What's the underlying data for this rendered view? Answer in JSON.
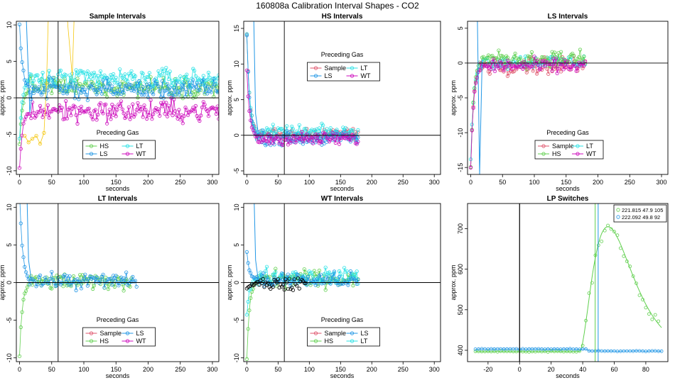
{
  "page_title": "160808a   Calibration Interval Shapes - CO2",
  "colors": {
    "Sample": "#df536b",
    "HS": "#61d04f",
    "LS": "#2297e6",
    "LT": "#28e2e5",
    "WT": "#cd0bbc",
    "extra": "#f5c710",
    "black": "#000000"
  },
  "chart_data": [
    {
      "type": "scatter",
      "title": "Sample Intervals",
      "xlabel": "seconds",
      "ylabel": "approx. ppm",
      "xlim": [
        -5,
        310
      ],
      "ylim": [
        -10.5,
        10.5
      ],
      "xticks": [
        0,
        50,
        100,
        150,
        200,
        250,
        300
      ],
      "yticks": [
        10,
        5,
        0,
        -5,
        -10
      ],
      "vline": 60,
      "hline": 0,
      "legend": {
        "title": "Preceding Gas",
        "entries": [
          "HS",
          "LT",
          "LS",
          "WT"
        ],
        "position": "bottom-center"
      },
      "series": [
        {
          "name": "HS",
          "start": -6.5,
          "end": 310,
          "mean": 1.5,
          "noise": 1.3
        },
        {
          "name": "LT",
          "start": -5.5,
          "end": 310,
          "mean": 2.6,
          "noise": 1.4
        },
        {
          "name": "LS",
          "start": 10,
          "end": 310,
          "mean": 1.2,
          "noise": 1.3
        },
        {
          "name": "WT",
          "start": -9.5,
          "end": 310,
          "mean": -1.8,
          "noise": 1.5
        }
      ]
    },
    {
      "type": "scatter",
      "title": "HS Intervals",
      "xlabel": "seconds",
      "ylabel": "approx. ppm",
      "xlim": [
        -5,
        310
      ],
      "ylim": [
        -5.5,
        16
      ],
      "xticks": [
        0,
        50,
        100,
        150,
        200,
        250,
        300
      ],
      "yticks": [
        15,
        10,
        5,
        0,
        -5
      ],
      "vline": 60,
      "hline": 0,
      "legend": {
        "title": "Preceding Gas",
        "entries": [
          "Sample",
          "LT",
          "LS",
          "WT"
        ],
        "position": "top-center"
      },
      "series": [
        {
          "name": "Sample",
          "start": 14,
          "end": 178,
          "mean": 0.2,
          "noise": 0.9
        },
        {
          "name": "LT",
          "start": 14,
          "end": 178,
          "mean": 0.4,
          "noise": 0.9
        },
        {
          "name": "LS",
          "start": 14,
          "end": 178,
          "mean": -0.4,
          "noise": 0.9
        },
        {
          "name": "WT",
          "start": 9,
          "end": 178,
          "mean": -0.5,
          "noise": 0.9
        }
      ]
    },
    {
      "type": "scatter",
      "title": "LS Intervals",
      "xlabel": "seconds",
      "ylabel": "approx. ppm",
      "xlim": [
        -5,
        310
      ],
      "ylim": [
        -16,
        6
      ],
      "xticks": [
        0,
        50,
        100,
        150,
        200,
        250,
        300
      ],
      "yticks": [
        5,
        0,
        -5,
        -10,
        -15
      ],
      "vline": null,
      "hline": 0,
      "legend": {
        "title": "Preceding Gas",
        "entries": [
          "Sample",
          "LT",
          "HS",
          "WT"
        ],
        "position": "bottom-center"
      },
      "series": [
        {
          "name": "Sample",
          "start": -15,
          "end": 180,
          "mean": -0.3,
          "noise": 1.2
        },
        {
          "name": "LT",
          "start": -14,
          "end": 180,
          "mean": 0.2,
          "noise": 1.0
        },
        {
          "name": "HS",
          "start": -15,
          "end": 180,
          "mean": 0.6,
          "noise": 1.1
        },
        {
          "name": "WT",
          "start": -15,
          "end": 180,
          "mean": -0.4,
          "noise": 1.0
        }
      ]
    },
    {
      "type": "scatter",
      "title": "LT Intervals",
      "xlabel": "seconds",
      "ylabel": "approx. ppm",
      "xlim": [
        -5,
        310
      ],
      "ylim": [
        -10.5,
        10.5
      ],
      "xticks": [
        0,
        50,
        100,
        150,
        200,
        250,
        300
      ],
      "yticks": [
        10,
        5,
        0,
        -5,
        -10
      ],
      "vline": 60,
      "hline": 0,
      "legend": {
        "title": "Preceding Gas",
        "entries": [
          "Sample",
          "LS",
          "HS",
          "WT"
        ],
        "position": "bottom-center"
      },
      "series": [
        {
          "name": "HS",
          "start": -9.5,
          "end": 175,
          "mean": 0.1,
          "noise": 1.0
        },
        {
          "name": "LS",
          "start": 12,
          "end": 182,
          "mean": 0.2,
          "noise": 1.0
        }
      ]
    },
    {
      "type": "scatter",
      "title": "WT Intervals",
      "xlabel": "seconds",
      "ylabel": "approx. ppm",
      "xlim": [
        -5,
        310
      ],
      "ylim": [
        -10.5,
        10.5
      ],
      "xticks": [
        0,
        50,
        100,
        150,
        200,
        250,
        300
      ],
      "yticks": [
        10,
        5,
        0,
        -5,
        -10
      ],
      "vline": 60,
      "hline": 0,
      "legend": {
        "title": "Preceding Gas",
        "entries": [
          "Sample",
          "LS",
          "HS",
          "LT"
        ],
        "position": "bottom-center"
      },
      "series": [
        {
          "name": "HS",
          "start": -10,
          "end": 178,
          "mean": 0.5,
          "noise": 1.1
        },
        {
          "name": "LT",
          "start": -4.5,
          "end": 178,
          "mean": 0.8,
          "noise": 1.1
        },
        {
          "name": "LS",
          "start": 4,
          "end": 178,
          "mean": 0.3,
          "noise": 1.0
        },
        {
          "name": "black",
          "start": -1,
          "end": 95,
          "mean": -0.2,
          "noise": 1.0
        }
      ]
    },
    {
      "type": "line",
      "title": "LP Switches",
      "xlabel": "",
      "ylabel": "approx. ppm",
      "xlim": [
        -33,
        94
      ],
      "ylim": [
        372,
        762
      ],
      "xticks": [
        -20,
        0,
        20,
        40,
        60,
        80
      ],
      "yticks": [
        400,
        500,
        600,
        700
      ],
      "vline": 0,
      "legend": {
        "title": "",
        "entries": [
          "221.815 47.9 105",
          "222.092 49.8 92"
        ],
        "position": "top-right"
      },
      "series": [
        {
          "name": "221.815 47.9 105",
          "color": "HS",
          "baseline": 397,
          "peak_x": 56,
          "peak_y": 705,
          "switch_x": 47.9
        },
        {
          "name": "222.092 49.8 92",
          "color": "LS",
          "baseline": 403,
          "switch_x": 49.8
        }
      ]
    }
  ],
  "lp_xlabel": "seconds"
}
